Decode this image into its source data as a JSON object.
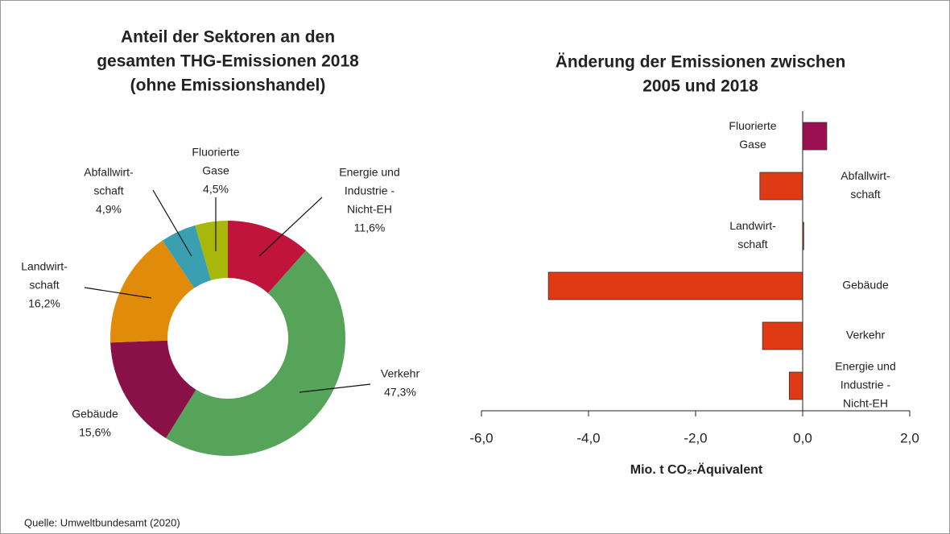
{
  "chart_data": [
    {
      "type": "donut",
      "title": [
        "Anteil der Sektoren an den",
        "gesamten THG-Emissionen 2018",
        "(ohne Emissionshandel)"
      ],
      "categories": [
        [
          "Energie und",
          "Industrie -",
          "Nicht-EH"
        ],
        [
          "Verkehr"
        ],
        [
          "Gebäude"
        ],
        [
          "Landwirt-",
          "schaft"
        ],
        [
          "Abfallwirt-",
          "schaft"
        ],
        [
          "Fluorierte",
          "Gase"
        ]
      ],
      "values": [
        11.6,
        47.3,
        15.6,
        16.2,
        4.9,
        4.5
      ],
      "value_labels": [
        "11,6%",
        "47,3%",
        "15,6%",
        "16,2%",
        "4,9%",
        "4,5%"
      ],
      "colors": [
        "#c0143c",
        "#56a45a",
        "#8a1048",
        "#e08c0a",
        "#3a9fb0",
        "#a8b80a"
      ]
    },
    {
      "type": "hbar",
      "title": [
        "Änderung der Emissionen zwischen",
        "2005 und 2018"
      ],
      "categories": [
        [
          "Fluorierte",
          "Gase"
        ],
        [
          "Abfallwirt-",
          "schaft"
        ],
        [
          "Landwirt-",
          "schaft"
        ],
        [
          "Gebäude"
        ],
        [
          "Verkehr"
        ],
        [
          "Energie und",
          "Industrie -",
          "Nicht-EH"
        ]
      ],
      "values": [
        0.45,
        -0.8,
        0.02,
        -4.75,
        -0.75,
        -0.25
      ],
      "colors": [
        "#9a1050",
        "#e03a14",
        "#e03a14",
        "#e03a14",
        "#e03a14",
        "#e03a14"
      ],
      "xlim": [
        -6,
        2
      ],
      "xticks": [
        {
          "value": -6,
          "label": "-6,0"
        },
        {
          "value": -4,
          "label": "-4,0"
        },
        {
          "value": -2,
          "label": "-2,0"
        },
        {
          "value": 0,
          "label": "0,0"
        },
        {
          "value": 2,
          "label": "2,0"
        }
      ],
      "xlabel": "Mio. t CO₂-Äquivalent"
    }
  ],
  "source": "Quelle: Umweltbundesamt (2020)"
}
